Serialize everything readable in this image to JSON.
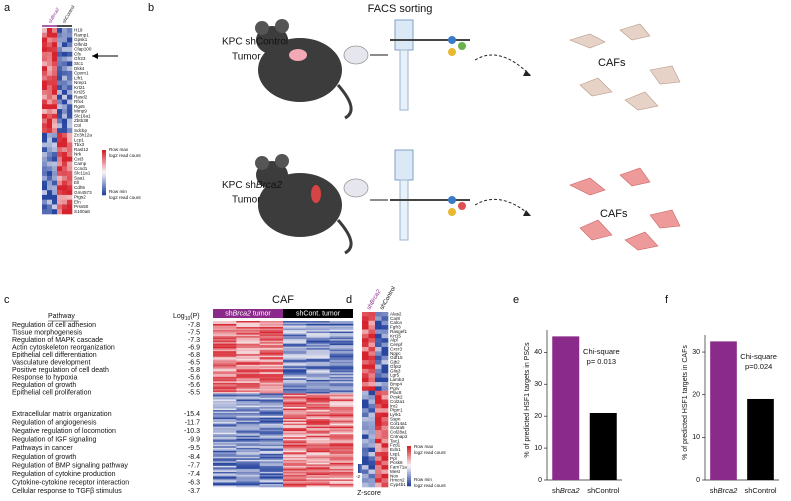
{
  "panel_labels": [
    "a",
    "b",
    "c",
    "d",
    "e",
    "f"
  ],
  "panel_a": {
    "samples": [
      {
        "prefix": "sh",
        "gene": "Brca2"
      },
      {
        "label": "shControl"
      }
    ],
    "genes": [
      "H19",
      "Ramp1",
      "Gpsk1",
      "Olfml3",
      "Cfap100",
      "Cfs",
      "Gfr23",
      "Stc1",
      "Dkk4",
      "Cpxm1",
      "Lifr1",
      "Nrep1",
      "Krt21",
      "Krt25",
      "Rasd2",
      "Rfx4",
      "Rgs5",
      "Mmp9",
      "Slc16a1",
      "Zbtb38",
      "Ctrl",
      "Sdcbp",
      "Zc3h12a",
      "Lcp1",
      "Tbx3",
      "Rasl12",
      "Nrk",
      "Cst3",
      "Camp",
      "Ccnd1",
      "Slc11a1",
      "Saa1",
      "Ell",
      "Cdh5",
      "Gm4573",
      "Ptgs2",
      "Eln",
      "Prss50",
      "S100a8"
    ],
    "color_key": {
      "max": "Row max",
      "max_unit": "log2 read count",
      "min": "Row min",
      "min_unit": "log2 read count"
    }
  },
  "panel_b": {
    "title": "FACS sorting",
    "control": {
      "line1": "KPC shControl",
      "line2": "Tumor",
      "output": "CAFs"
    },
    "brca2": {
      "prefix": "KPC sh",
      "gene": "Brca2",
      "line2": "Tumor",
      "output": "CAFs"
    }
  },
  "panel_c": {
    "title": "CAF",
    "column_pathway": "Pathway",
    "column_log": {
      "base": "Log",
      "sub": "10",
      "rest": "(P)"
    },
    "group_brca2": {
      "prefix": "sh",
      "gene": "Brca2",
      "rest": " tumor"
    },
    "group_control": "shCont. tumor",
    "up": [
      {
        "pathway": "Regulation of cell adhesion",
        "log10p": -7.8
      },
      {
        "pathway": "Tissue morphogenesis",
        "log10p": -7.5
      },
      {
        "pathway": "Regulation of MAPK cascade",
        "log10p": -7.3
      },
      {
        "pathway": "Actin cytoskeleton reorganization",
        "log10p": -6.9
      },
      {
        "pathway": "Epithelial cell differentiation",
        "log10p": -6.8
      },
      {
        "pathway": "Vasculature development",
        "log10p": -6.5
      },
      {
        "pathway": "Positive regulation of cell death",
        "log10p": -5.8
      },
      {
        "pathway": "Response to hypoxia",
        "log10p": -5.6
      },
      {
        "pathway": "Regulation of growth",
        "log10p": -5.6
      },
      {
        "pathway": "Epithelial cell proliferation",
        "log10p": -5.5
      }
    ],
    "down": [
      {
        "pathway": "Extracellular matrix organization",
        "log10p": -15.4
      },
      {
        "pathway": "Regulation of angiogenesis",
        "log10p": -11.7
      },
      {
        "pathway": "Negative regulation of locomotion",
        "log10p": -10.3
      },
      {
        "pathway": "Regulation of IGF signaling",
        "log10p": -9.9
      },
      {
        "pathway": "Pathways in cancer",
        "log10p": -9.5
      },
      {
        "pathway": "Regulation of growth",
        "log10p": -8.4
      },
      {
        "pathway": "Regulation of BMP signaling pathway",
        "log10p": -7.7
      },
      {
        "pathway": "Regulation of cytokine production",
        "log10p": -7.4
      },
      {
        "pathway": "Cytokine-cytokine receptor interaction",
        "log10p": -6.3
      },
      {
        "pathway": "Cellular response to TGFβ stimulus",
        "log10p": -3.7
      }
    ],
    "key_ticks": [
      -2,
      -1,
      0,
      1,
      2
    ],
    "key_title": [
      "Row",
      "Z-score"
    ]
  },
  "panel_d": {
    "samples": [
      {
        "prefix": "sh",
        "gene": "Brca2"
      },
      {
        "label": "shControl"
      }
    ],
    "genes": [
      "Alas2",
      "Car8",
      "Calca",
      "Fgfr3",
      "Rasgef1",
      "Krt15",
      "Alpl",
      "Cenpf",
      "Cxcr3",
      "Nppc",
      "Gdf15",
      "Gjb2",
      "Gfpt2",
      "Glis3",
      "Lgr5",
      "Lamb3",
      "Bmp4",
      "Pgrv",
      "Plac8",
      "Pcsk2",
      "Col2a1",
      "Irx2",
      "Ptprr1",
      "Lyrk1",
      "Sspn",
      "Col14a1",
      "Scara5",
      "Col28a1",
      "Cntnap2",
      "Tac1",
      "Fzd1",
      "Edn1",
      "Lsp1",
      "Ppl",
      "Pcsk6",
      "Fam71a",
      "Mest",
      "Nov",
      "Hmcn2",
      "Cyp4b1"
    ],
    "color_key": {
      "max": "Row max",
      "max_unit": "log2 read count",
      "min": "Row min",
      "min_unit": "log2 read count"
    }
  },
  "panel_e": {
    "type": "bar",
    "ylabel": "% of predicted HSF1 targets in PSCs",
    "categories": [
      {
        "prefix": "sh",
        "gene": "Brca2"
      },
      {
        "label": "shControl"
      }
    ],
    "values": [
      45,
      21
    ],
    "colors": [
      "#8a2a8a",
      "#000000"
    ],
    "ylim": [
      0,
      47
    ],
    "yticks": [
      0,
      10,
      20,
      30,
      40
    ],
    "annotation": [
      "Chi-square",
      "p= 0.013"
    ]
  },
  "panel_f": {
    "type": "bar",
    "ylabel": "% of predicted HSF1 targets in CAFs",
    "categories": [
      {
        "prefix": "sh",
        "gene": "Brca2"
      },
      {
        "label": "shControl"
      }
    ],
    "values": [
      32.5,
      19
    ],
    "colors": [
      "#8a2a8a",
      "#000000"
    ],
    "ylim": [
      0,
      34
    ],
    "yticks": [
      0,
      10,
      20,
      30
    ],
    "annotation": [
      "Chi-square",
      "p=0.024"
    ]
  }
}
